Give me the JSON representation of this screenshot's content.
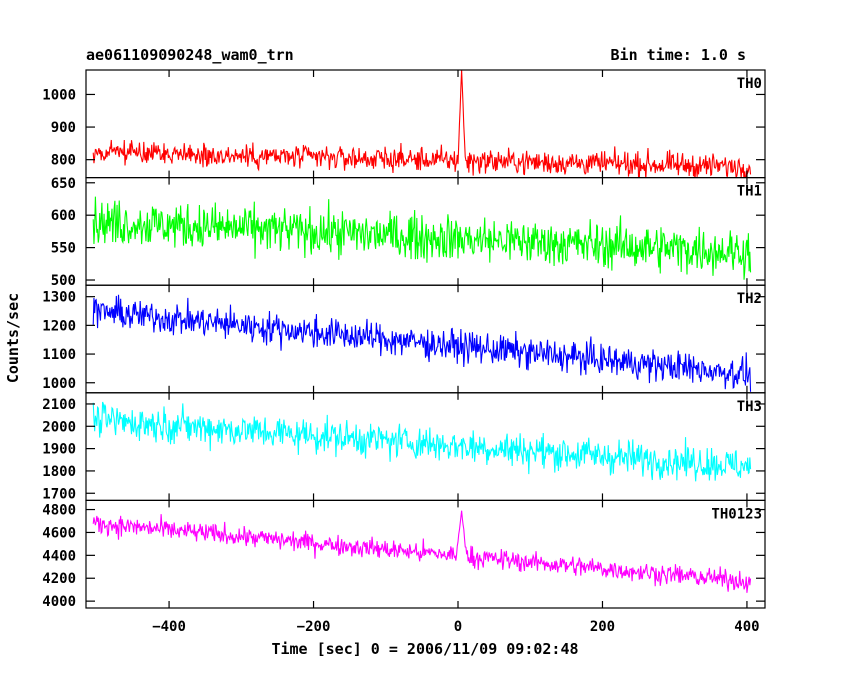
{
  "chart_data": {
    "type": "line",
    "title_left": "ae061109090248_wam0_trn",
    "title_right": "Bin time: 1.0 s",
    "xlabel": "Time [sec] 0 = 2006/11/09 09:02:48",
    "ylabel": "Counts/sec",
    "xlim": [
      -515,
      425
    ],
    "x_ticks": [
      -400,
      -200,
      0,
      200,
      400
    ],
    "x_tick_labels": [
      "−400",
      "−200",
      "0",
      "200",
      "400"
    ],
    "x_range": [
      -505,
      405
    ],
    "panels": [
      {
        "name": "TH0",
        "color": "#ff0000",
        "ylim": [
          745,
          1075
        ],
        "ticks": [
          800,
          900,
          1000
        ],
        "tick_labels": [
          "800",
          "900",
          "1000"
        ],
        "trend": {
          "start": 822,
          "end": 778
        },
        "noise": 34,
        "spike": {
          "x": 5,
          "peak": 1075,
          "halfwidth": 4
        }
      },
      {
        "name": "TH1",
        "color": "#00ff00",
        "ylim": [
          492,
          658
        ],
        "ticks": [
          500,
          550,
          600,
          650
        ],
        "tick_labels": [
          "500",
          "550",
          "600",
          "650"
        ],
        "trend": {
          "start": 590,
          "end": 543
        },
        "noise": 32
      },
      {
        "name": "TH2",
        "color": "#0000ff",
        "ylim": [
          965,
          1340
        ],
        "ticks": [
          1000,
          1100,
          1200,
          1300
        ],
        "tick_labels": [
          "1000",
          "1100",
          "1200",
          "1300"
        ],
        "trend": {
          "start": 1250,
          "end": 1030
        },
        "noise": 50
      },
      {
        "name": "TH3",
        "color": "#00ffff",
        "ylim": [
          1668,
          2150
        ],
        "ticks": [
          1700,
          1800,
          1900,
          2000,
          2100
        ],
        "tick_labels": [
          "1700",
          "1800",
          "1900",
          "2000",
          "2100"
        ],
        "trend": {
          "start": 2030,
          "end": 1820
        },
        "noise": 70
      },
      {
        "name": "TH0123",
        "color": "#ff00ff",
        "ylim": [
          3940,
          4880
        ],
        "ticks": [
          4000,
          4200,
          4400,
          4600,
          4800
        ],
        "tick_labels": [
          "4000",
          "4200",
          "4400",
          "4600",
          "4800"
        ],
        "trend": {
          "start": 4680,
          "end": 4170
        },
        "noise": 80,
        "spike": {
          "x": 5,
          "peak": 4790,
          "halfwidth": 6
        }
      }
    ]
  }
}
